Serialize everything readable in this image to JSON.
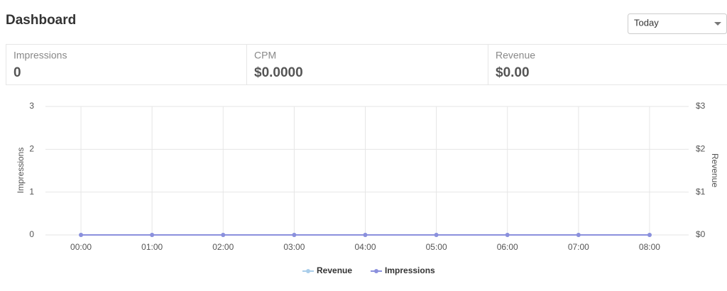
{
  "header": {
    "title": "Dashboard",
    "range": "Today"
  },
  "stats": [
    {
      "label": "Impressions",
      "value": "0"
    },
    {
      "label": "CPM",
      "value": "$0.0000"
    },
    {
      "label": "Revenue",
      "value": "$0.00"
    }
  ],
  "chart_data": {
    "type": "line",
    "categories": [
      "00:00",
      "01:00",
      "02:00",
      "03:00",
      "04:00",
      "05:00",
      "06:00",
      "07:00",
      "08:00"
    ],
    "series": [
      {
        "name": "Revenue",
        "color": "#a9cdea",
        "axis": "y2",
        "values": [
          0,
          0,
          0,
          0,
          0,
          0,
          0,
          0,
          0
        ]
      },
      {
        "name": "Impressions",
        "color": "#8b90dd",
        "values": [
          0,
          0,
          0,
          0,
          0,
          0,
          0,
          0,
          0
        ]
      }
    ],
    "ylabel": "Impressions",
    "y2label": "Revenue",
    "ylim": [
      0,
      3
    ],
    "yticks": [
      0,
      1,
      2,
      3
    ],
    "y2lim": [
      0,
      3
    ],
    "y2ticks": [
      {
        "value": 0,
        "label": "$0"
      },
      {
        "value": 1,
        "label": "$1"
      },
      {
        "value": 2,
        "label": "$2"
      },
      {
        "value": 3,
        "label": "$3"
      }
    ],
    "grid": true,
    "legend": "bottom"
  }
}
